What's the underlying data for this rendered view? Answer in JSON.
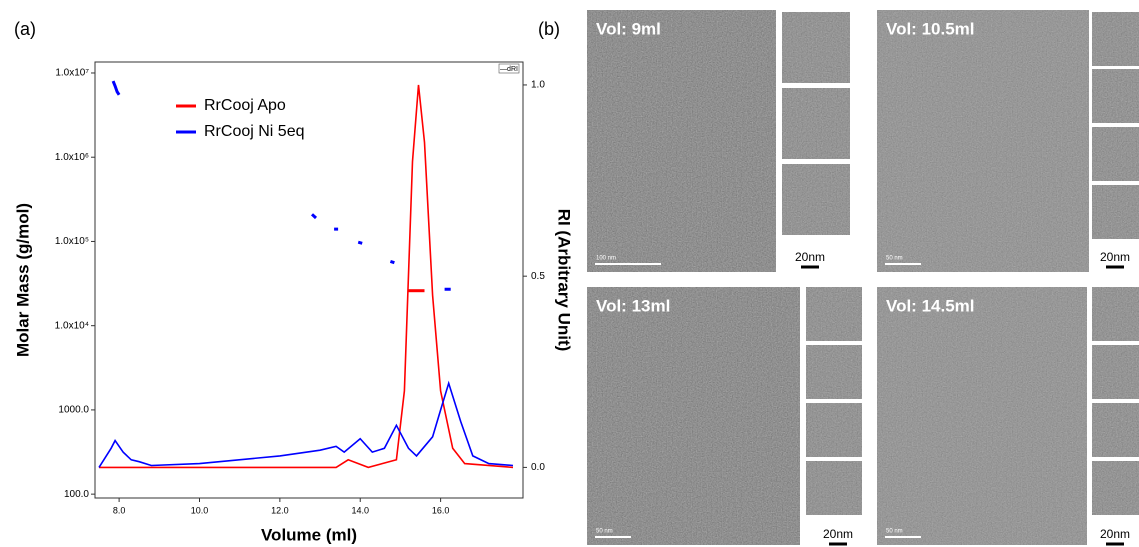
{
  "chart_data": {
    "type": "line",
    "panel_label": "(a)",
    "xlabel": "Volume (ml)",
    "ylabel": "Molar Mass (g/mol)",
    "y2label": "RI (Arbitrary Unit)",
    "detector_label": "—dRI",
    "xlim": [
      7.4,
      18.05
    ],
    "xticks": [
      {
        "value": 8,
        "label": "8.0"
      },
      {
        "value": 10,
        "label": "10.0"
      },
      {
        "value": 12,
        "label": "12.0"
      },
      {
        "value": 14,
        "label": "14.0"
      },
      {
        "value": 16,
        "label": "16.0"
      }
    ],
    "ylim": [
      90,
      13500000
    ],
    "log_y": true,
    "yticks": [
      {
        "value": 100,
        "label": "100.0"
      },
      {
        "value": 1000,
        "label": "1000.0"
      },
      {
        "value": 10000,
        "label": "1.0x10⁴"
      },
      {
        "value": 100000,
        "label": "1.0x10⁵"
      },
      {
        "value": 1000000,
        "label": "1.0x10⁶"
      },
      {
        "value": 10000000,
        "label": "1.0x10⁷"
      }
    ],
    "y2lim": [
      -0.08,
      1.06
    ],
    "y2ticks": [
      {
        "value": 0,
        "label": "0.0"
      },
      {
        "value": 0.5,
        "label": "0.5"
      },
      {
        "value": 1,
        "label": "1.0"
      }
    ],
    "series": [
      {
        "name": "RrCooj Apo",
        "color": "#ff0000",
        "axis": "y2",
        "x": [
          7.5,
          13.4,
          13.7,
          14.2,
          14.9,
          15.1,
          15.3,
          15.45,
          15.6,
          15.8,
          16.0,
          16.3,
          16.6,
          17.8
        ],
        "values": [
          0,
          0,
          0.02,
          0,
          0.02,
          0.2,
          0.8,
          1.0,
          0.85,
          0.45,
          0.2,
          0.05,
          0.01,
          0
        ]
      },
      {
        "name": "RrCooj Ni 5eq",
        "color": "#0000ff",
        "axis": "y2",
        "x": [
          7.5,
          7.8,
          7.9,
          8.1,
          8.3,
          8.5,
          8.8,
          10,
          12,
          13,
          13.4,
          13.6,
          14.0,
          14.3,
          14.6,
          14.9,
          15.2,
          15.4,
          15.8,
          16.0,
          16.2,
          16.5,
          16.8,
          17.2,
          17.8
        ],
        "values": [
          0,
          0.05,
          0.07,
          0.04,
          0.02,
          0.015,
          0.005,
          0.01,
          0.03,
          0.045,
          0.055,
          0.04,
          0.075,
          0.04,
          0.05,
          0.11,
          0.05,
          0.03,
          0.08,
          0.15,
          0.22,
          0.12,
          0.03,
          0.01,
          0.005
        ]
      },
      {
        "color": "#ff0000",
        "x": [
          15.2,
          15.6
        ],
        "values": [
          26000,
          26000
        ]
      },
      {
        "color": "#0000ff",
        "x": [
          7.85,
          7.9,
          7.95,
          8.0,
          null,
          12.8,
          12.9,
          null,
          13.35,
          13.45,
          null,
          13.95,
          14.05,
          null,
          14.75,
          14.85,
          null,
          16.1,
          16.25
        ],
        "values": [
          8000000,
          7000000,
          6000000,
          5500000,
          null,
          210000,
          190000,
          null,
          140000,
          140000,
          null,
          98000,
          95000,
          null,
          58000,
          56000,
          null,
          27000,
          27000
        ]
      }
    ]
  },
  "panel_b": {
    "label": "(b)",
    "images": [
      {
        "label": "Vol: 9ml",
        "scale_bar": "100 nm",
        "thumb_scale": "20nm"
      },
      {
        "label": "Vol: 10.5ml",
        "scale_bar": "50 nm",
        "thumb_scale": "20nm"
      },
      {
        "label": "Vol: 13ml",
        "scale_bar": "50 nm",
        "thumb_scale": "20nm"
      },
      {
        "label": "Vol: 14.5ml",
        "scale_bar": "50 nm",
        "thumb_scale": "20nm"
      }
    ]
  }
}
